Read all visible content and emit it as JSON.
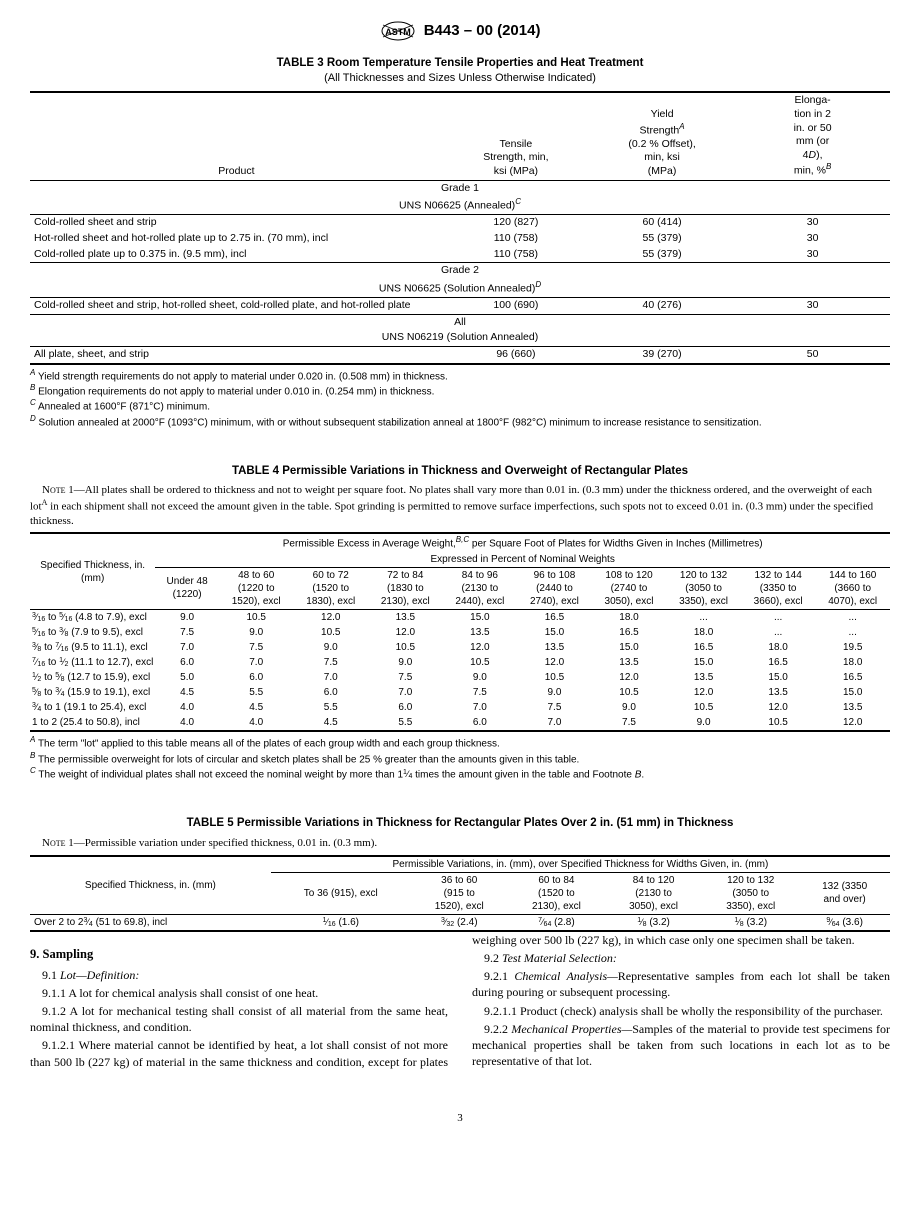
{
  "header": {
    "doc_id": "B443 – 00 (2014)"
  },
  "table3": {
    "title": "TABLE 3 Room Temperature Tensile Properties and Heat Treatment",
    "subtitle": "(All Thicknesses and Sizes Unless Otherwise Indicated)",
    "col_headers": {
      "product": "Product",
      "tensile": "Tensile\nStrength, min,\nksi (MPa)",
      "yield_l1": "Yield",
      "yield_l2": "Strength",
      "yield_l3": "(0.2 % Offset),",
      "yield_l4": "min, ksi",
      "yield_l5": "(MPa)",
      "elong_l1": "Elonga-",
      "elong_l2": "tion in 2",
      "elong_l3": "in. or 50",
      "elong_l4": "mm (or",
      "elong_l5": "4",
      "elong_l6": "D",
      "elong_l7": "),",
      "elong_l8": "min, %"
    },
    "sections": {
      "g1a": "Grade 1",
      "g1b": "UNS N06625 (Annealed)",
      "g2a": "Grade 2",
      "g2b": "UNS N06625 (Solution Annealed)",
      "all_a": "All",
      "all_b": "UNS N06219 (Solution Annealed)"
    },
    "rows": {
      "r1": {
        "p": "Cold-rolled sheet and strip",
        "t": "120 (827)",
        "y": "60 (414)",
        "e": "30"
      },
      "r2": {
        "p": "Hot-rolled sheet and hot-rolled plate up to 2.75 in. (70 mm), incl",
        "t": "110 (758)",
        "y": "55 (379)",
        "e": "30"
      },
      "r3": {
        "p": "Cold-rolled plate up to 0.375 in. (9.5 mm), incl",
        "t": "110 (758)",
        "y": "55 (379)",
        "e": "30"
      },
      "r4": {
        "p": "Cold-rolled sheet and strip, hot-rolled sheet, cold-rolled plate, and hot-rolled plate",
        "t": "100 (690)",
        "y": "40 (276)",
        "e": "30"
      },
      "r5": {
        "p": "All plate, sheet, and strip",
        "t": "96 (660)",
        "y": "39 (270)",
        "e": "50"
      }
    },
    "notes": {
      "a": " Yield strength requirements do not apply to material under 0.020 in. (0.508 mm) in thickness.",
      "b": " Elongation requirements do not apply to material under 0.010 in. (0.254 mm) in thickness.",
      "c": " Annealed at 1600°F (871°C) minimum.",
      "d": " Solution annealed at 2000°F (1093°C) minimum, with or without subsequent stabilization anneal at 1800°F (982°C) minimum to increase resistance to sensitization."
    }
  },
  "table4": {
    "title": "TABLE 4 Permissible Variations in Thickness and Overweight of Rectangular Plates",
    "note1_pre": "Note 1—",
    "note1": "All plates shall be ordered to thickness and not to weight per square foot. No plates shall vary more than 0.01 in. (0.3 mm) under the thickness ordered, and the overweight of each lot",
    "note1_mid": " in each shipment shall not exceed the amount given in the table. Spot grinding is permitted to remove surface imperfections, such spots not to exceed 0.01 in. (0.3 mm) under the specified thickness.",
    "col_headers": {
      "spec": "Specified Thickness, in.\n(mm)",
      "span_l1": "Permissible Excess in Average Weight,",
      "span_l2": " per Square Foot of Plates for Widths Given in Inches (Millimetres)",
      "span2": "Expressed in Percent of Nominal Weights",
      "c1": "Under 48\n(1220)",
      "c2": "48 to 60\n(1220 to\n1520), excl",
      "c3": "60 to 72\n(1520 to\n1830), excl",
      "c4": "72 to 84\n(1830 to\n2130), excl",
      "c5": "84 to 96\n(2130 to\n2440), excl",
      "c6": "96 to 108\n(2440 to\n2740), excl",
      "c7": "108 to 120\n(2740 to\n3050), excl",
      "c8": "120 to 132\n(3050 to\n3350), excl",
      "c9": "132 to 144\n(3350 to\n3660), excl",
      "c10": "144 to 160\n(3660 to\n4070), excl"
    },
    "rows": [
      {
        "h_html": "<span class='frac'><span class='n'>3</span><span class='s'>⁄</span><span class='d'>16</span></span> to <span class='frac'><span class='n'>5</span><span class='s'>⁄</span><span class='d'>16</span></span> (4.8 to 7.9), excl",
        "v": [
          "9.0",
          "10.5",
          "12.0",
          "13.5",
          "15.0",
          "16.5",
          "18.0",
          "...",
          "...",
          "..."
        ]
      },
      {
        "h_html": "<span class='frac'><span class='n'>5</span><span class='s'>⁄</span><span class='d'>16</span></span> to <span class='frac'><span class='n'>3</span><span class='s'>⁄</span><span class='d'>8</span></span> (7.9 to 9.5), excl",
        "v": [
          "7.5",
          "9.0",
          "10.5",
          "12.0",
          "13.5",
          "15.0",
          "16.5",
          "18.0",
          "...",
          "..."
        ]
      },
      {
        "h_html": "<span class='frac'><span class='n'>3</span><span class='s'>⁄</span><span class='d'>8</span></span> to <span class='frac'><span class='n'>7</span><span class='s'>⁄</span><span class='d'>16</span></span> (9.5 to 11.1), excl",
        "v": [
          "7.0",
          "7.5",
          "9.0",
          "10.5",
          "12.0",
          "13.5",
          "15.0",
          "16.5",
          "18.0",
          "19.5"
        ]
      },
      {
        "h_html": "<span class='frac'><span class='n'>7</span><span class='s'>⁄</span><span class='d'>16</span></span> to <span class='frac'><span class='n'>1</span><span class='s'>⁄</span><span class='d'>2</span></span> (11.1 to 12.7), excl",
        "v": [
          "6.0",
          "7.0",
          "7.5",
          "9.0",
          "10.5",
          "12.0",
          "13.5",
          "15.0",
          "16.5",
          "18.0"
        ]
      },
      {
        "h_html": "<span class='frac'><span class='n'>1</span><span class='s'>⁄</span><span class='d'>2</span></span> to <span class='frac'><span class='n'>5</span><span class='s'>⁄</span><span class='d'>8</span></span> (12.7 to 15.9), excl",
        "v": [
          "5.0",
          "6.0",
          "7.0",
          "7.5",
          "9.0",
          "10.5",
          "12.0",
          "13.5",
          "15.0",
          "16.5"
        ]
      },
      {
        "h_html": "<span class='frac'><span class='n'>5</span><span class='s'>⁄</span><span class='d'>8</span></span> to <span class='frac'><span class='n'>3</span><span class='s'>⁄</span><span class='d'>4</span></span> (15.9 to 19.1), excl",
        "v": [
          "4.5",
          "5.5",
          "6.0",
          "7.0",
          "7.5",
          "9.0",
          "10.5",
          "12.0",
          "13.5",
          "15.0"
        ]
      },
      {
        "h_html": "<span class='frac'><span class='n'>3</span><span class='s'>⁄</span><span class='d'>4</span></span> to 1 (19.1 to 25.4), excl",
        "v": [
          "4.0",
          "4.5",
          "5.5",
          "6.0",
          "7.0",
          "7.5",
          "9.0",
          "10.5",
          "12.0",
          "13.5"
        ]
      },
      {
        "h_html": "1 to 2 (25.4 to 50.8), incl",
        "v": [
          "4.0",
          "4.0",
          "4.5",
          "5.5",
          "6.0",
          "7.0",
          "7.5",
          "9.0",
          "10.5",
          "12.0"
        ]
      }
    ],
    "notes": {
      "a": " The term \"lot\" applied to this table means all of the plates of each group width and each group thickness.",
      "b": " The permissible overweight for lots of circular and sketch plates shall be 25 % greater than the amounts given in this table.",
      "c_pre": " The weight of individual plates shall not exceed the nominal weight by more than 1",
      "c_post": " times the amount given in the table and Footnote "
    }
  },
  "table5": {
    "title": "TABLE 5 Permissible Variations in Thickness for Rectangular Plates Over 2 in. (51 mm) in Thickness",
    "note1_pre": "Note 1—",
    "note1": "Permissible variation under specified thickness, 0.01 in. (0.3 mm).",
    "col_headers": {
      "spec": "Specified Thickness, in. (mm)",
      "span": "Permissible Variations, in. (mm), over Specified Thickness for Widths Given, in. (mm)",
      "c1": "To 36 (915), excl",
      "c2": "36 to 60\n(915 to\n1520), excl",
      "c3": "60 to 84\n(1520 to\n2130), excl",
      "c4": "84 to 120\n(2130 to\n3050), excl",
      "c5": "120 to 132\n(3050 to\n3350), excl",
      "c6": "132 (3350\nand over)"
    },
    "row": {
      "h_html": "Over 2 to 2<span class='frac'><span class='n'>3</span><span class='s'>⁄</span><span class='d'>4</span></span> (51 to 69.8), incl",
      "v1_html": "<span class='frac'><span class='n'>1</span><span class='s'>⁄</span><span class='d'>16</span></span> (1.6)",
      "v2_html": "<span class='frac'><span class='n'>3</span><span class='s'>⁄</span><span class='d'>32</span></span> (2.4)",
      "v3_html": "<span class='frac'><span class='n'>7</span><span class='s'>⁄</span><span class='d'>64</span></span> (2.8)",
      "v4_html": "<span class='frac'><span class='n'>1</span><span class='s'>⁄</span><span class='d'>8</span></span> (3.2)",
      "v5_html": "<span class='frac'><span class='n'>1</span><span class='s'>⁄</span><span class='d'>8</span></span> (3.2)",
      "v6_html": "<span class='frac'><span class='n'>9</span><span class='s'>⁄</span><span class='d'>64</span></span> (3.6)"
    }
  },
  "body": {
    "s9": "9.  Sampling",
    "p911h": "Lot—Definition:",
    "p911": "9.1  ",
    "p9111": "9.1.1  A lot for chemical analysis shall consist of one heat.",
    "p9112": "9.1.2 A lot for mechanical testing shall consist of all material from the same heat, nominal thickness, and condition.",
    "p91121": "9.1.2.1  Where material cannot be identified by heat, a lot shall consist of not more than 500 lb (227 kg) of material in the same thickness and condition, except for plates weighing over 500 lb (227 kg), in which case only one specimen shall be taken.",
    "p92": "9.2  ",
    "p92h": "Test Material Selection:",
    "p921": "9.2.1  ",
    "p921h": "Chemical Analysis—",
    "p921t": "Representative samples from each lot shall be taken during pouring or subsequent processing.",
    "p9211": "9.2.1.1  Product (check) analysis shall be wholly the responsibility of the purchaser.",
    "p922": "9.2.2  ",
    "p922h": "Mechanical Properties—",
    "p922t": "Samples of the material to provide test specimens for mechanical properties shall be taken from such locations in each lot as to be representative of that lot."
  },
  "page": "3"
}
